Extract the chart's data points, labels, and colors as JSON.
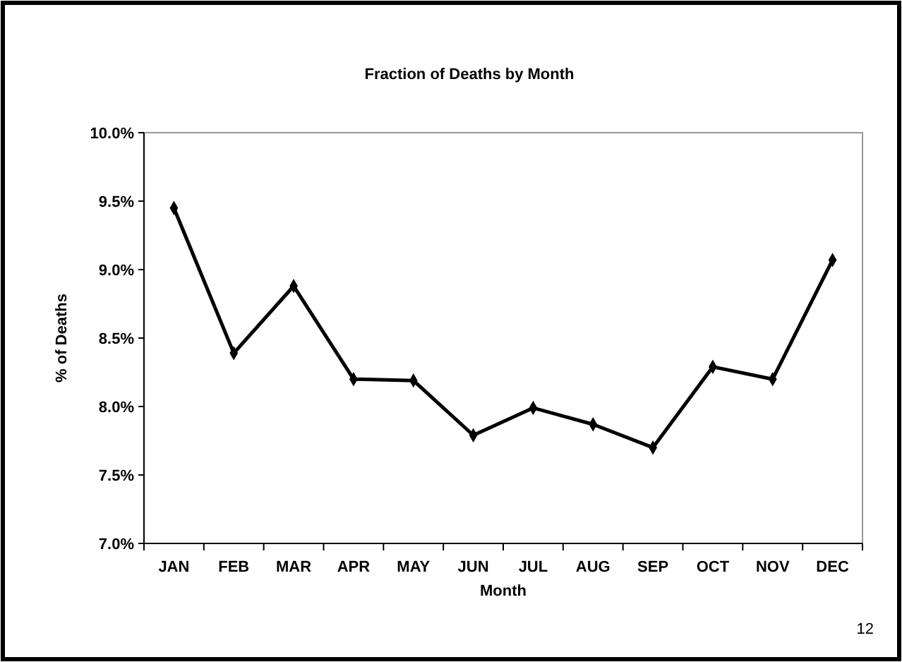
{
  "chart_data": {
    "type": "line",
    "title": "Fraction of Deaths by Month",
    "xlabel": "Month",
    "ylabel": "% of Deaths",
    "categories": [
      "JAN",
      "FEB",
      "MAR",
      "APR",
      "MAY",
      "JUN",
      "JUL",
      "AUG",
      "SEP",
      "OCT",
      "NOV",
      "DEC"
    ],
    "series": [
      {
        "color": "#000000",
        "values": [
          9.45,
          8.39,
          8.88,
          8.2,
          8.19,
          7.79,
          7.99,
          7.87,
          7.7,
          8.29,
          8.2,
          9.07
        ]
      }
    ],
    "ylim": [
      7,
      10
    ],
    "yticks": [
      {
        "value": 7,
        "label": "7.0%"
      },
      {
        "value": 7.5,
        "label": "7.5%"
      },
      {
        "value": 8,
        "label": "8.0%"
      },
      {
        "value": 8.5,
        "label": "8.5%"
      },
      {
        "value": 9,
        "label": "9.0%"
      },
      {
        "value": 9.5,
        "label": "9.5%"
      },
      {
        "value": 10,
        "label": "10.0%"
      }
    ],
    "grid": false,
    "marker": "diamond",
    "line_style": "solid",
    "annotations": [
      "12"
    ]
  }
}
